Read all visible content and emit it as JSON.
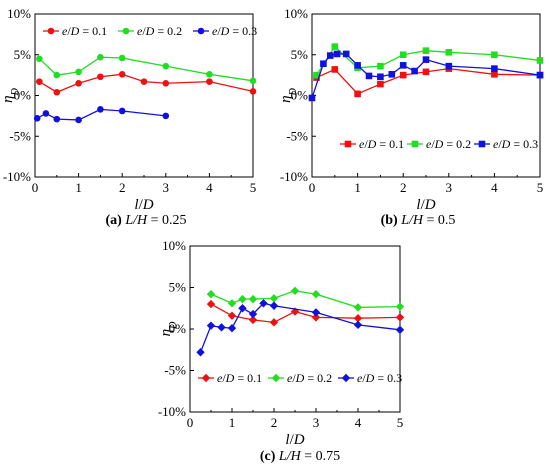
{
  "chart_data": [
    {
      "type": "line",
      "caption_letter": "(a)",
      "caption_text": "L/H = 0.25",
      "xlabel": "l/D",
      "ylabel": "ηD",
      "xlim": [
        0,
        5
      ],
      "ylim": [
        -10,
        10
      ],
      "x_ticks": [
        0,
        1,
        2,
        3,
        4,
        5
      ],
      "y_ticks": [
        -10,
        -5,
        0,
        5,
        10
      ],
      "y_tick_labels": [
        "-10%",
        "-5%",
        "0%",
        "5%",
        "10%"
      ],
      "legend_placement": "top",
      "marker": "circle",
      "series": [
        {
          "name": "e/D = 0.1",
          "color": "#ee1111",
          "x": [
            0.1,
            0.5,
            1.0,
            1.5,
            2.0,
            2.5,
            3.0,
            4.0,
            5.0
          ],
          "y": [
            1.7,
            0.4,
            1.5,
            2.3,
            2.6,
            1.7,
            1.5,
            1.7,
            0.5
          ]
        },
        {
          "name": "e/D = 0.2",
          "color": "#22dd22",
          "x": [
            0.1,
            0.5,
            1.0,
            1.5,
            2.0,
            3.0,
            4.0,
            5.0
          ],
          "y": [
            4.5,
            2.5,
            2.9,
            4.7,
            4.6,
            3.6,
            2.6,
            1.8
          ]
        },
        {
          "name": "e/D = 0.3",
          "color": "#1111dd",
          "x": [
            0.05,
            0.25,
            0.5,
            1.0,
            1.5,
            2.0,
            3.0
          ],
          "y": [
            -2.8,
            -2.2,
            -2.9,
            -3.0,
            -1.7,
            -1.9,
            -2.5
          ]
        }
      ]
    },
    {
      "type": "line",
      "caption_letter": "(b)",
      "caption_text": "L/H = 0.5",
      "xlabel": "l/D",
      "ylabel": "ηD",
      "xlim": [
        0,
        5
      ],
      "ylim": [
        -10,
        10
      ],
      "x_ticks": [
        0,
        1,
        2,
        3,
        4,
        5
      ],
      "y_ticks": [
        -10,
        -5,
        0,
        5,
        10
      ],
      "y_tick_labels": [
        "-10%",
        "-5%",
        "0%",
        "5%",
        "10%"
      ],
      "legend_placement": "bottom",
      "marker": "square",
      "series": [
        {
          "name": "e/D = 0.1",
          "color": "#ee1111",
          "x": [
            0.1,
            0.5,
            1.0,
            1.5,
            2.0,
            2.5,
            3.0,
            4.0,
            5.0
          ],
          "y": [
            2.2,
            3.2,
            0.2,
            1.4,
            2.5,
            2.9,
            3.3,
            2.6,
            2.5
          ]
        },
        {
          "name": "e/D = 0.2",
          "color": "#22dd22",
          "x": [
            0.1,
            0.5,
            1.0,
            1.5,
            2.0,
            2.5,
            3.0,
            4.0,
            5.0
          ],
          "y": [
            2.5,
            6.0,
            3.4,
            3.6,
            5.0,
            5.5,
            5.3,
            5.0,
            4.3
          ]
        },
        {
          "name": "e/D = 0.3",
          "color": "#1111dd",
          "x": [
            0.0,
            0.25,
            0.4,
            0.55,
            0.75,
            1.0,
            1.25,
            1.5,
            1.75,
            2.0,
            2.25,
            2.5,
            3.0,
            4.0,
            5.0
          ],
          "y": [
            -0.3,
            3.9,
            4.9,
            5.1,
            5.1,
            3.7,
            2.4,
            2.3,
            2.6,
            3.7,
            3.0,
            4.4,
            3.6,
            3.3,
            2.5
          ]
        }
      ]
    },
    {
      "type": "line",
      "caption_letter": "(c)",
      "caption_text": "L/H = 0.75",
      "xlabel": "l/D",
      "ylabel": "ηD",
      "xlim": [
        0,
        5
      ],
      "ylim": [
        -10,
        10
      ],
      "x_ticks": [
        0,
        1,
        2,
        3,
        4,
        5
      ],
      "y_ticks": [
        -10,
        -5,
        0,
        5,
        10
      ],
      "y_tick_labels": [
        "-10%",
        "-5%",
        "0%",
        "5%",
        "10%"
      ],
      "legend_placement": "bottom",
      "marker": "diamond",
      "series": [
        {
          "name": "e/D = 0.1",
          "color": "#ee1111",
          "x": [
            0.5,
            1.0,
            1.5,
            2.0,
            2.5,
            3.0,
            4.0,
            5.0
          ],
          "y": [
            3.0,
            1.6,
            1.1,
            0.8,
            2.1,
            1.4,
            1.3,
            1.4
          ]
        },
        {
          "name": "e/D = 0.2",
          "color": "#22dd22",
          "x": [
            0.5,
            1.0,
            1.25,
            1.5,
            2.0,
            2.5,
            3.0,
            4.0,
            5.0
          ],
          "y": [
            4.2,
            3.1,
            3.6,
            3.6,
            3.7,
            4.6,
            4.2,
            2.6,
            2.7
          ]
        },
        {
          "name": "e/D = 0.3",
          "color": "#1111dd",
          "x": [
            0.25,
            0.5,
            0.75,
            1.0,
            1.25,
            1.5,
            1.75,
            2.0,
            3.0,
            4.0,
            5.0
          ],
          "y": [
            -2.8,
            0.4,
            0.2,
            0.1,
            2.5,
            1.8,
            3.1,
            2.8,
            2.0,
            0.5,
            -0.1
          ]
        }
      ]
    }
  ]
}
